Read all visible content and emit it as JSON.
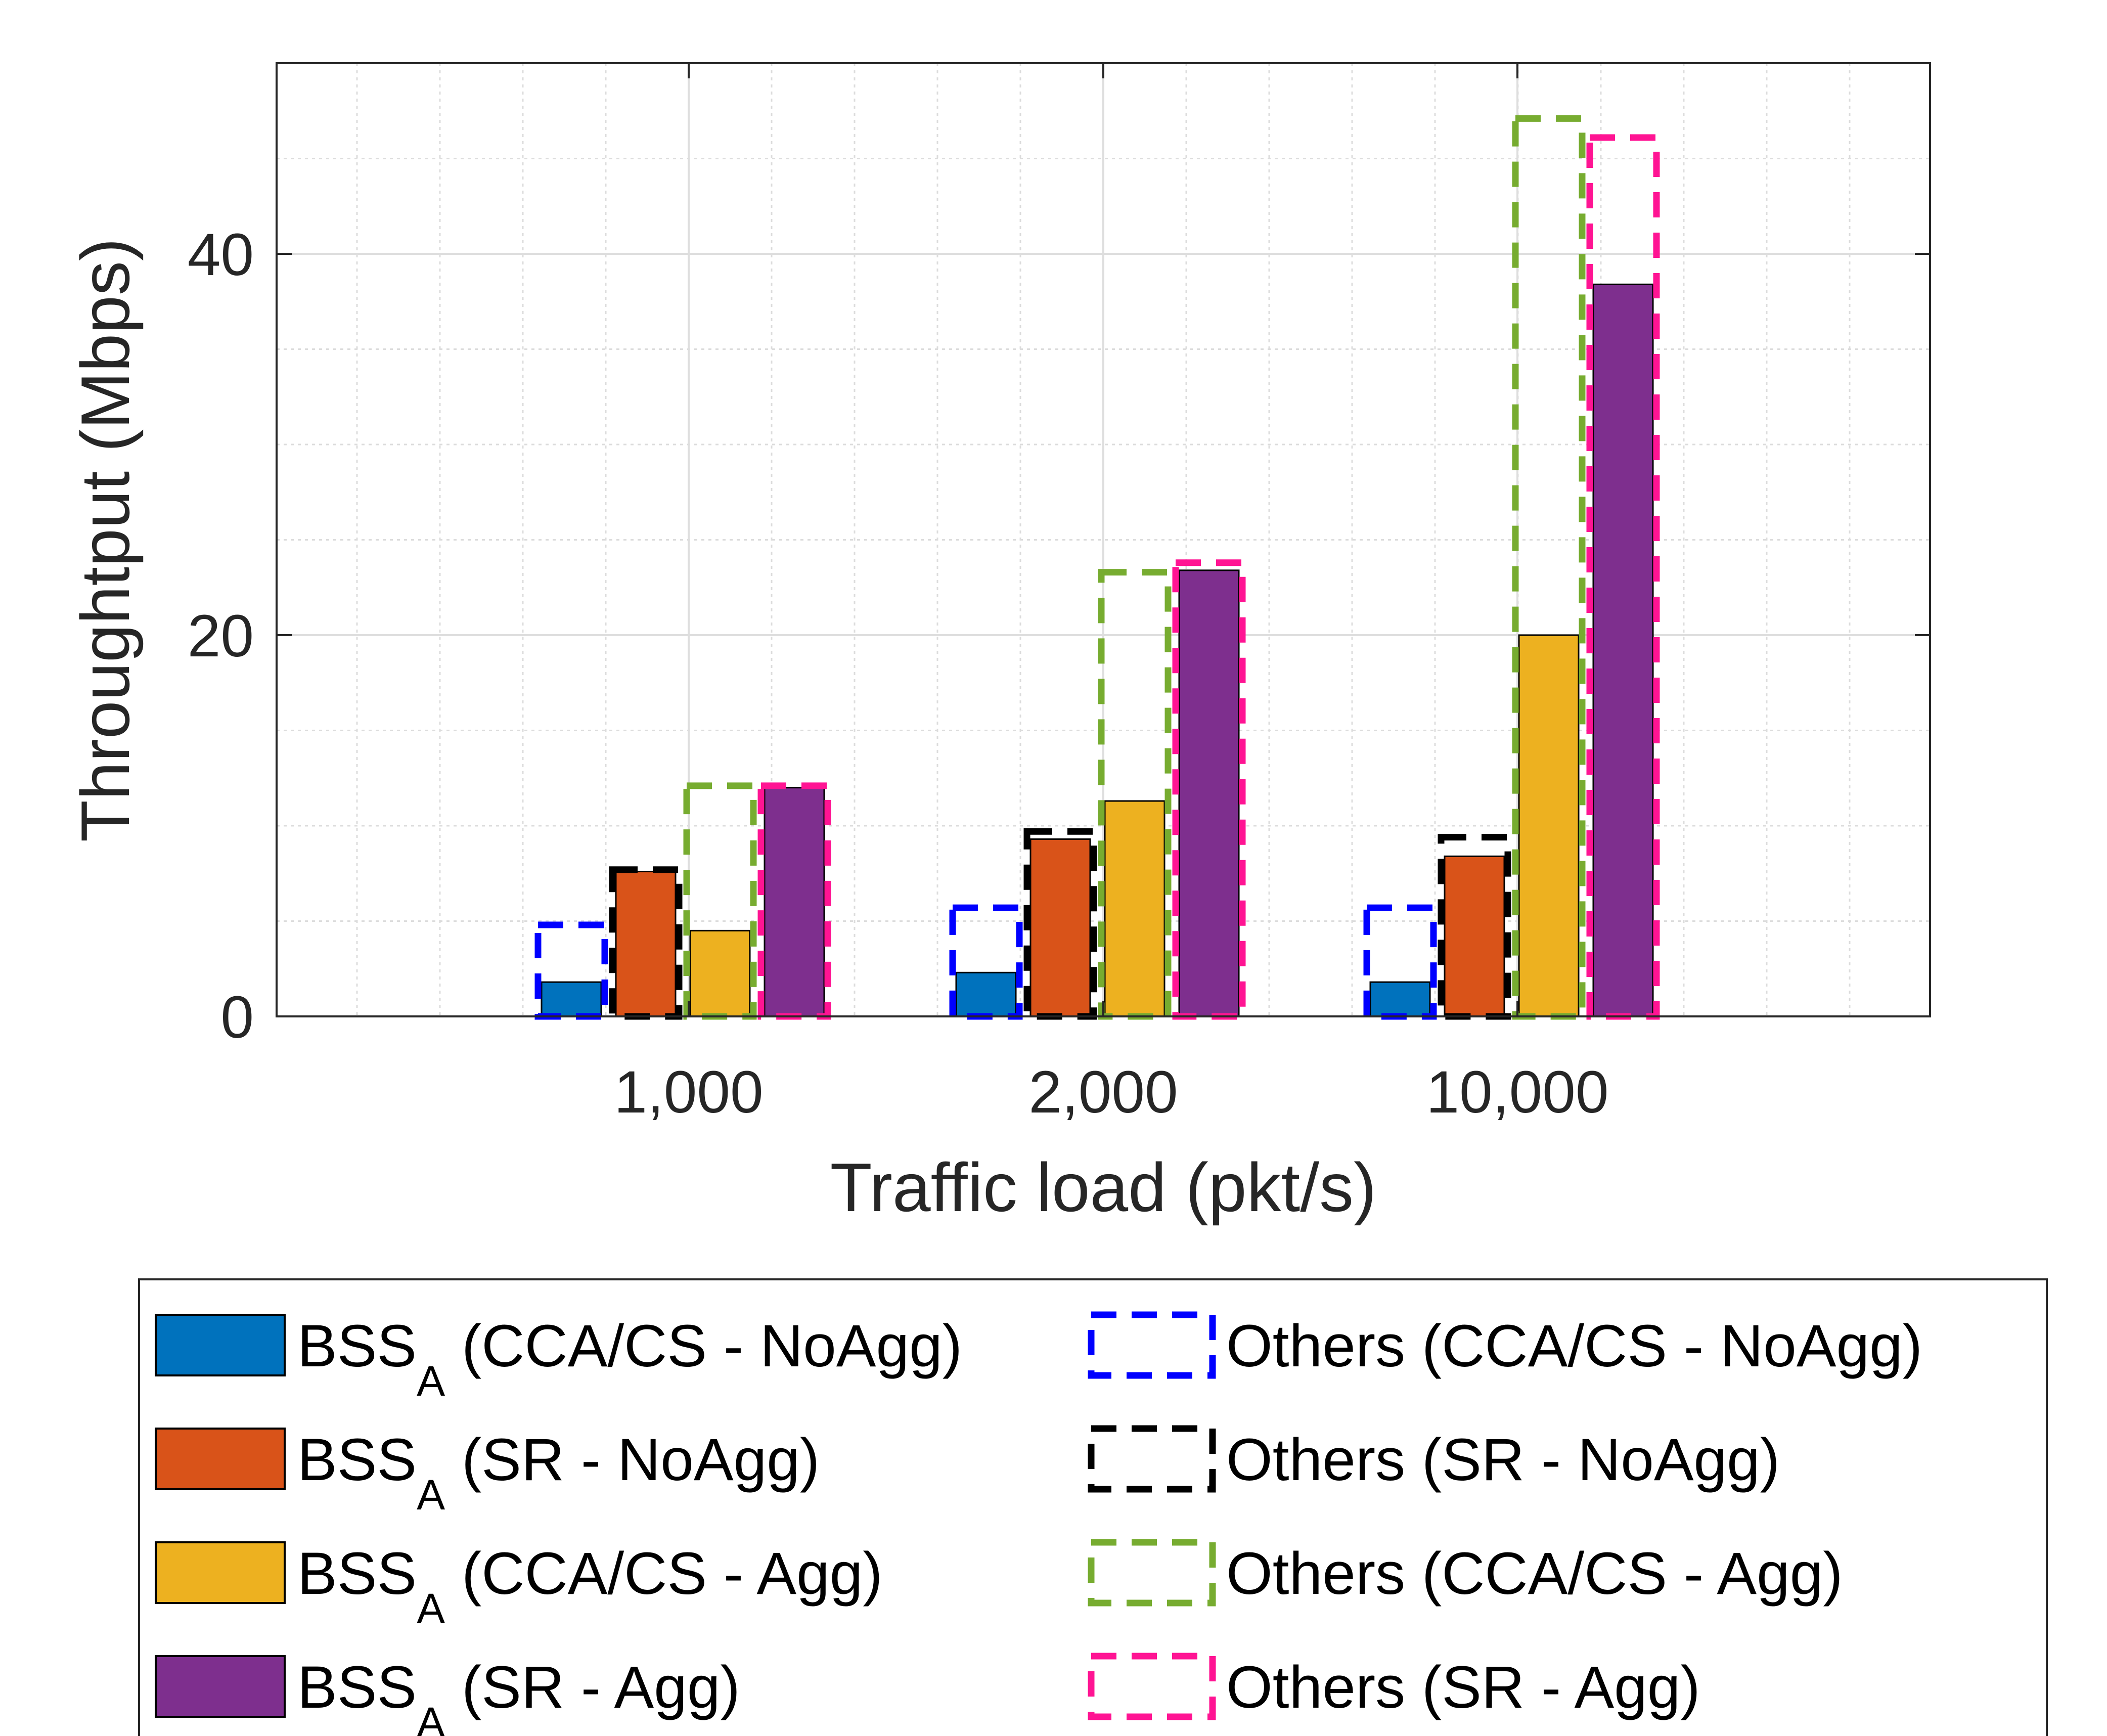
{
  "chart_data": {
    "type": "bar",
    "title": "",
    "xlabel": "Traffic load (pkt/s)",
    "ylabel": "Throughtput (Mbps)",
    "categories": [
      "1,000",
      "2,000",
      "10,000"
    ],
    "ylim": [
      0,
      50
    ],
    "yticks": [
      0,
      20,
      40
    ],
    "grid": true,
    "legend_position": "bottom",
    "series": [
      {
        "name": "BSS_A (CCA/CS - NoAgg)",
        "legend_main": "BSS",
        "legend_sub": "A",
        "legend_rest": " (CCA/CS - NoAgg)",
        "style": "filled",
        "color": "#0072BD",
        "values": [
          1.8,
          2.3,
          1.8
        ]
      },
      {
        "name": "BSS_A (SR - NoAgg)",
        "legend_main": "BSS",
        "legend_sub": "A",
        "legend_rest": " (SR - NoAgg)",
        "style": "filled",
        "color": "#D95319",
        "values": [
          7.6,
          9.3,
          8.4
        ]
      },
      {
        "name": "BSS_A (CCA/CS - Agg)",
        "legend_main": "BSS",
        "legend_sub": "A",
        "legend_rest": " (CCA/CS - Agg)",
        "style": "filled",
        "color": "#EDB120",
        "values": [
          4.5,
          11.3,
          20.0
        ]
      },
      {
        "name": "BSS_A (SR - Agg)",
        "legend_main": "BSS",
        "legend_sub": "A",
        "legend_rest": " (SR - Agg)",
        "style": "filled",
        "color": "#7E2F8E",
        "values": [
          12.0,
          23.4,
          38.4
        ]
      },
      {
        "name": "Others (CCA/CS - NoAgg)",
        "legend_main": "Others (CCA/CS - NoAgg)",
        "style": "dashed",
        "color": "#0000FF",
        "values": [
          4.8,
          5.7,
          5.7
        ]
      },
      {
        "name": "Others (SR - NoAgg)",
        "legend_main": "Others (SR - NoAgg)",
        "style": "dashed",
        "color": "#000000",
        "values": [
          7.7,
          9.7,
          9.4
        ]
      },
      {
        "name": "Others (CCA/CS - Agg)",
        "legend_main": "Others (CCA/CS - Agg)",
        "style": "dashed",
        "color": "#77AC30",
        "values": [
          12.1,
          23.3,
          47.1
        ]
      },
      {
        "name": "Others (SR - Agg)",
        "legend_main": "Others (SR - Agg)",
        "style": "dashed",
        "color": "#FF1493",
        "values": [
          12.1,
          23.8,
          46.1
        ]
      }
    ]
  }
}
